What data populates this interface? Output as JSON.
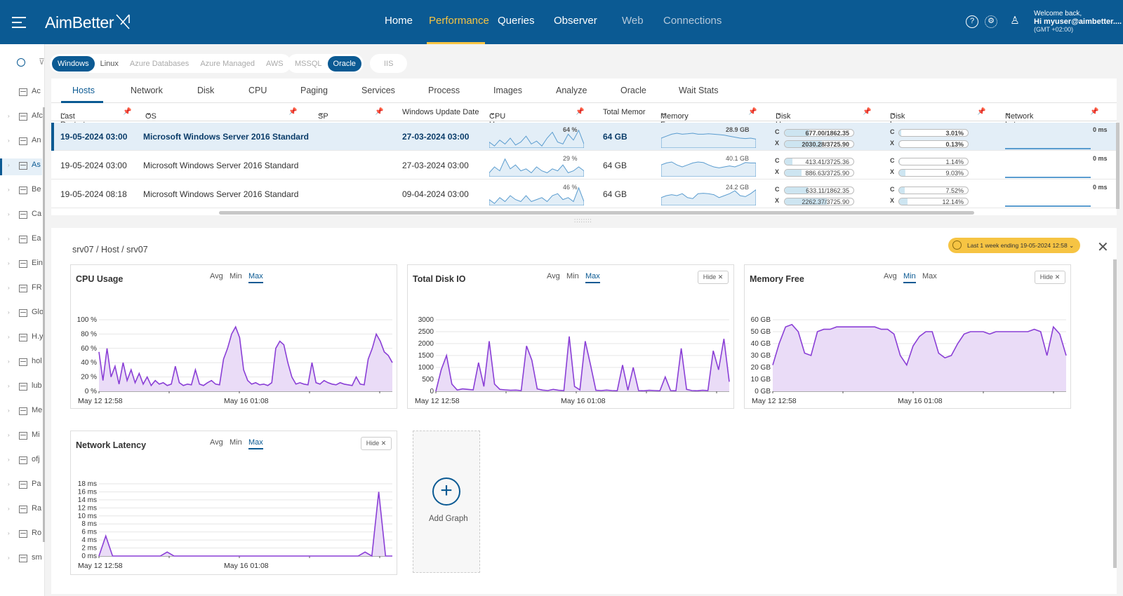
{
  "app": {
    "logo": "AimBetter"
  },
  "nav": {
    "items": [
      "Home",
      "Performance",
      "Queries",
      "Observer",
      "Web",
      "Connections"
    ],
    "active": "Performance"
  },
  "user": {
    "welcome": "Welcome back,",
    "name": "Hi myuser@aimbetter....",
    "tz": "(GMT +02:00)"
  },
  "sidebar": {
    "items": [
      "Ac",
      "Afc",
      "An",
      "As",
      "Be",
      "Ca",
      "Ea",
      "Ein",
      "FR",
      "Glo",
      "H.y",
      "hol",
      "lub",
      "Me",
      "Mi",
      "ofj",
      "Pa",
      "Ra",
      "Ro",
      "sm"
    ],
    "active_index": 3
  },
  "filters": {
    "os": [
      "Windows",
      "Linux",
      "Azure Databases",
      "Azure Managed",
      "AWS"
    ],
    "db": [
      "MSSQL",
      "Oracle"
    ],
    "web": [
      "IIS"
    ]
  },
  "tabs": [
    "Hosts",
    "Network",
    "Disk",
    "CPU",
    "Paging",
    "Services",
    "Process",
    "Images",
    "Analyze",
    "Oracle",
    "Wait Stats"
  ],
  "columns": [
    "Last Restart",
    "OS",
    "SP",
    "Windows Update Date",
    "CPU Usage",
    "Total Memor",
    "Memory Free",
    "Disk Usage (GB)",
    "Disk busy",
    "Network Latency"
  ],
  "rows": [
    {
      "restart": "19-05-2024 03:00",
      "os": "Microsoft Windows Server 2016 Standard",
      "update": "27-03-2024 03:00",
      "cpu": "64 %",
      "mem": "64 GB",
      "free": "28.9 GB",
      "diskC": "677.00/1862.35",
      "diskX": "2030.28/3725.90",
      "diskCfill": 0.36,
      "diskXfill": 0.54,
      "busyC": "3.01%",
      "busyX": "0.13%",
      "busyCfill": 0.03,
      "busyXfill": 0.01,
      "lat": "0 ms"
    },
    {
      "restart": "19-05-2024 03:00",
      "os": "Microsoft Windows Server 2016 Standard",
      "update": "27-03-2024 03:00",
      "cpu": "29 %",
      "mem": "64 GB",
      "free": "40.1 GB",
      "diskC": "413.41/3725.36",
      "diskX": "886.63/3725.90",
      "diskCfill": 0.11,
      "diskXfill": 0.24,
      "busyC": "1.14%",
      "busyX": "9.03%",
      "busyCfill": 0.01,
      "busyXfill": 0.09,
      "lat": "0 ms"
    },
    {
      "restart": "19-05-2024 08:18",
      "os": "Microsoft Windows Server 2016 Standard",
      "update": "09-04-2024 03:00",
      "cpu": "46 %",
      "mem": "64 GB",
      "free": "24.2 GB",
      "diskC": "633.11/1862.35",
      "diskX": "2262.37/3725.90",
      "diskCfill": 0.34,
      "diskXfill": 0.61,
      "busyC": "7.52%",
      "busyX": "12.14%",
      "busyCfill": 0.08,
      "busyXfill": 0.12,
      "lat": "0 ms"
    }
  ],
  "detail": {
    "breadcrumb": "srv07 / Host / srv07",
    "range": "Last 1 week ending  19-05-2024 12:58",
    "agg": [
      "Avg",
      "Min",
      "Max"
    ],
    "hide": "Hide",
    "add_graph": "Add Graph"
  },
  "chart_data": [
    {
      "type": "area",
      "title": "CPU Usage",
      "selected": "Max",
      "yticks": [
        "100 %",
        "80 %",
        "60 %",
        "40 %",
        "20 %",
        "0 %"
      ],
      "xticks": [
        "May 12 12:58",
        "May 16 01:08"
      ],
      "ylim": [
        0,
        100
      ],
      "values": [
        55,
        15,
        60,
        20,
        35,
        10,
        40,
        15,
        30,
        12,
        25,
        10,
        20,
        8,
        15,
        10,
        12,
        8,
        10,
        35,
        12,
        8,
        10,
        9,
        30,
        10,
        8,
        12,
        15,
        10,
        9,
        45,
        60,
        80,
        90,
        75,
        30,
        15,
        10,
        12,
        9,
        10,
        8,
        12,
        60,
        70,
        65,
        40,
        20,
        10,
        12,
        10,
        9,
        40,
        12,
        10,
        15,
        12,
        10,
        9,
        12,
        10,
        9,
        8,
        20,
        10,
        9,
        45,
        60,
        80,
        70,
        55,
        50,
        40
      ]
    },
    {
      "type": "area",
      "title": "Total Disk IO",
      "selected": "Max",
      "yticks": [
        "3000",
        "2500",
        "2000",
        "1500",
        "1000",
        "500",
        "0"
      ],
      "xticks": [
        "May 12 12:58",
        "May 16 01:08"
      ],
      "ylim": [
        0,
        3000
      ],
      "values": [
        0,
        900,
        1500,
        300,
        50,
        100,
        80,
        60,
        1200,
        200,
        2100,
        300,
        80,
        60,
        40,
        50,
        30,
        1900,
        1300,
        100,
        50,
        30,
        80,
        40,
        30,
        2300,
        200,
        60,
        2100,
        1100,
        40,
        30,
        50,
        30,
        20,
        1100,
        40,
        1000,
        30,
        20,
        40,
        30,
        20,
        600,
        30,
        20,
        1800,
        80,
        30,
        20,
        40,
        30,
        1700,
        900,
        2200,
        400
      ]
    },
    {
      "type": "area",
      "title": "Memory Free",
      "selected": "Min",
      "yticks": [
        "60 GB",
        "50 GB",
        "40 GB",
        "30 GB",
        "20 GB",
        "10 GB",
        "0 GB"
      ],
      "xticks": [
        "May 12 12:58",
        "May 16 01:08"
      ],
      "ylim": [
        0,
        60
      ],
      "values": [
        22,
        40,
        54,
        56,
        50,
        32,
        30,
        50,
        52,
        52,
        54,
        54,
        54,
        54,
        54,
        54,
        54,
        52,
        52,
        48,
        30,
        22,
        38,
        46,
        50,
        50,
        32,
        28,
        30,
        40,
        48,
        50,
        50,
        50,
        48,
        50,
        50,
        50,
        50,
        50,
        50,
        52,
        50,
        30,
        54,
        48,
        30
      ]
    },
    {
      "type": "area",
      "title": "Network Latency",
      "selected": "Max",
      "yticks": [
        "18 ms",
        "16 ms",
        "14 ms",
        "12 ms",
        "10 ms",
        "8 ms",
        "6 ms",
        "4 ms",
        "2 ms",
        "0 ms"
      ],
      "xticks": [
        "May 12 12:58",
        "May 16 01:08"
      ],
      "ylim": [
        0,
        18
      ],
      "values": [
        0,
        5,
        0,
        0,
        0,
        0,
        0,
        0,
        0,
        0,
        1,
        0,
        0,
        0,
        0,
        0,
        0,
        0,
        0,
        0,
        0,
        0,
        0,
        0,
        0,
        0,
        0,
        0,
        0,
        0,
        0,
        0,
        0,
        0,
        0,
        0,
        0,
        0,
        0,
        1,
        0,
        16,
        0,
        0
      ]
    }
  ]
}
